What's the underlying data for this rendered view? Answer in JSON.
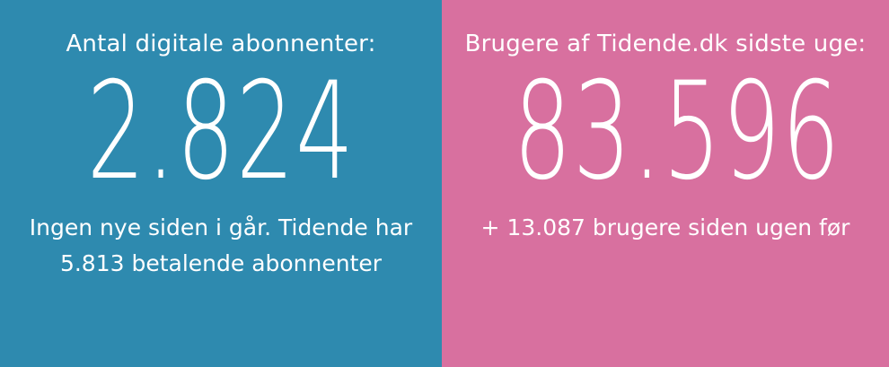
{
  "left_panel": {
    "label": "Antal digitale abonnenter:",
    "value": "2.824",
    "subtext_line1": "Ingen nye siden i går. Tidende har",
    "subtext_line2": "5.813 betalende abonnenter"
  },
  "right_panel": {
    "label": "Brugere af Tidende.dk sidste uge:",
    "value": "83.596",
    "subtext_line1": "+ 13.087 brugere siden ugen før"
  },
  "colors": {
    "left_background": "#2e8aaf",
    "right_background": "#d8709f",
    "text": "#ffffff"
  }
}
